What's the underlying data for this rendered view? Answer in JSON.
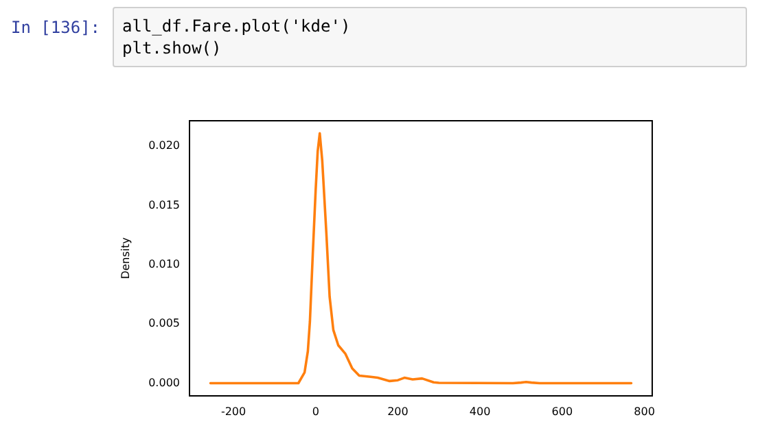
{
  "chart_data": {
    "type": "line",
    "ylabel": "Density",
    "annotations": [
      "In [136]:",
      "all_df.Fare.plot('kde')",
      "plt.show()"
    ],
    "series": [
      {
        "color": "#ff7f0e",
        "x": [
          -256,
          -42,
          -27,
          -19,
          -14,
          -7,
          0,
          5,
          10,
          16,
          26,
          34,
          43,
          55,
          72,
          89,
          106,
          134,
          151,
          180,
          200,
          216,
          236,
          259,
          287,
          300,
          480,
          500,
          512,
          525,
          545,
          768
        ],
        "values": [
          0,
          0,
          0.0009,
          0.0027,
          0.0052,
          0.0109,
          0.0163,
          0.0196,
          0.0211,
          0.0188,
          0.0127,
          0.0073,
          0.0045,
          0.0032,
          0.0025,
          0.00125,
          0.00064,
          0.00054,
          0.00046,
          0.00018,
          0.00025,
          0.00046,
          0.00032,
          0.0004,
          7e-05,
          3e-05,
          0,
          5e-05,
          0.0001,
          5e-05,
          0,
          0
        ]
      }
    ],
    "xlim": [
      -307,
      819
    ],
    "xticks": [
      -200,
      0,
      200,
      400,
      600,
      800
    ],
    "ylim": [
      -0.00106,
      0.02216
    ],
    "yticks": [
      {
        "value": 0,
        "label": "0.000"
      },
      0.005,
      {
        "value": 0.01,
        "label": "0.010"
      },
      0.015,
      {
        "value": 0.02,
        "label": "0.020"
      }
    ],
    "grid": false,
    "legend": false,
    "marker": "none",
    "line_style": "solid"
  }
}
